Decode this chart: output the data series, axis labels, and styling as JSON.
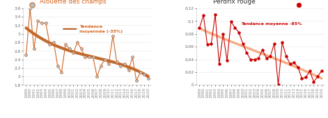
{
  "chart1": {
    "title": "Alouette des champs",
    "title_color": "#d4651e",
    "marker_color": "#a8c4d4",
    "marker_edge_color": "#d4651e",
    "line_color": "#d4651e",
    "trend_color": "#b85a1a",
    "trend_label": "Tendance\nmoyennée (-35%)",
    "trend_label_color": "#d4651e",
    "years": [
      1989,
      1990,
      1991,
      1992,
      1993,
      1994,
      1995,
      1996,
      1997,
      1998,
      1999,
      2000,
      2001,
      2002,
      2003,
      2004,
      2005,
      2006,
      2007,
      2008,
      2009,
      2010,
      2011,
      2012,
      2013,
      2014,
      2015,
      2016,
      2017,
      2018,
      2019,
      2020
    ],
    "values": [
      2.5,
      3.6,
      2.65,
      3.3,
      3.25,
      3.25,
      2.75,
      2.8,
      2.25,
      2.1,
      2.75,
      2.65,
      2.55,
      2.8,
      2.65,
      2.45,
      2.45,
      2.45,
      2.0,
      2.25,
      2.4,
      2.3,
      2.95,
      2.35,
      2.25,
      2.3,
      2.15,
      2.45,
      1.9,
      2.1,
      2.05,
      1.95
    ],
    "ylim": [
      1.8,
      3.6
    ],
    "yticks": [
      1.8,
      2.0,
      2.2,
      2.4,
      2.6,
      2.8,
      3.0,
      3.2,
      3.4,
      3.6
    ],
    "ytick_labels": [
      "1,8",
      "2",
      "2,2",
      "2,4",
      "2,6",
      "2,8",
      "3",
      "3,2",
      "3,4",
      "3,6"
    ]
  },
  "chart2": {
    "title": "Perdrix rouge",
    "title_color": "#333333",
    "marker_color": "#cc0000",
    "line_color": "#cc0000",
    "trend_color": "#f4a57a",
    "trend_label": "Tendance moyenne -85%",
    "trend_label_color": "#cc0000",
    "years": [
      1989,
      1990,
      1991,
      1992,
      1993,
      1994,
      1995,
      1996,
      1997,
      1998,
      1999,
      2000,
      2001,
      2002,
      2003,
      2004,
      2005,
      2006,
      2007,
      2008,
      2009,
      2010,
      2011,
      2012,
      2013,
      2014,
      2015,
      2016,
      2017,
      2018,
      2019,
      2020
    ],
    "values": [
      0.089,
      0.109,
      0.063,
      0.065,
      0.11,
      0.033,
      0.08,
      0.038,
      0.099,
      0.09,
      0.082,
      0.065,
      0.05,
      0.04,
      0.04,
      0.042,
      0.055,
      0.042,
      0.045,
      0.065,
      0.0,
      0.067,
      0.045,
      0.033,
      0.035,
      0.028,
      0.01,
      0.012,
      0.022,
      0.005,
      0.013,
      0.022
    ],
    "ylim": [
      0,
      0.12
    ],
    "yticks": [
      0,
      0.02,
      0.04,
      0.06,
      0.08,
      0.1,
      0.12
    ],
    "ytick_labels": [
      "0",
      "0,02",
      "0,04",
      "0,06",
      "0,08",
      "0,1",
      "0,12"
    ]
  },
  "background_color": "#ffffff",
  "tick_fontsize": 4.2,
  "title_fontsize": 6.5,
  "label_fontsize": 4.5
}
